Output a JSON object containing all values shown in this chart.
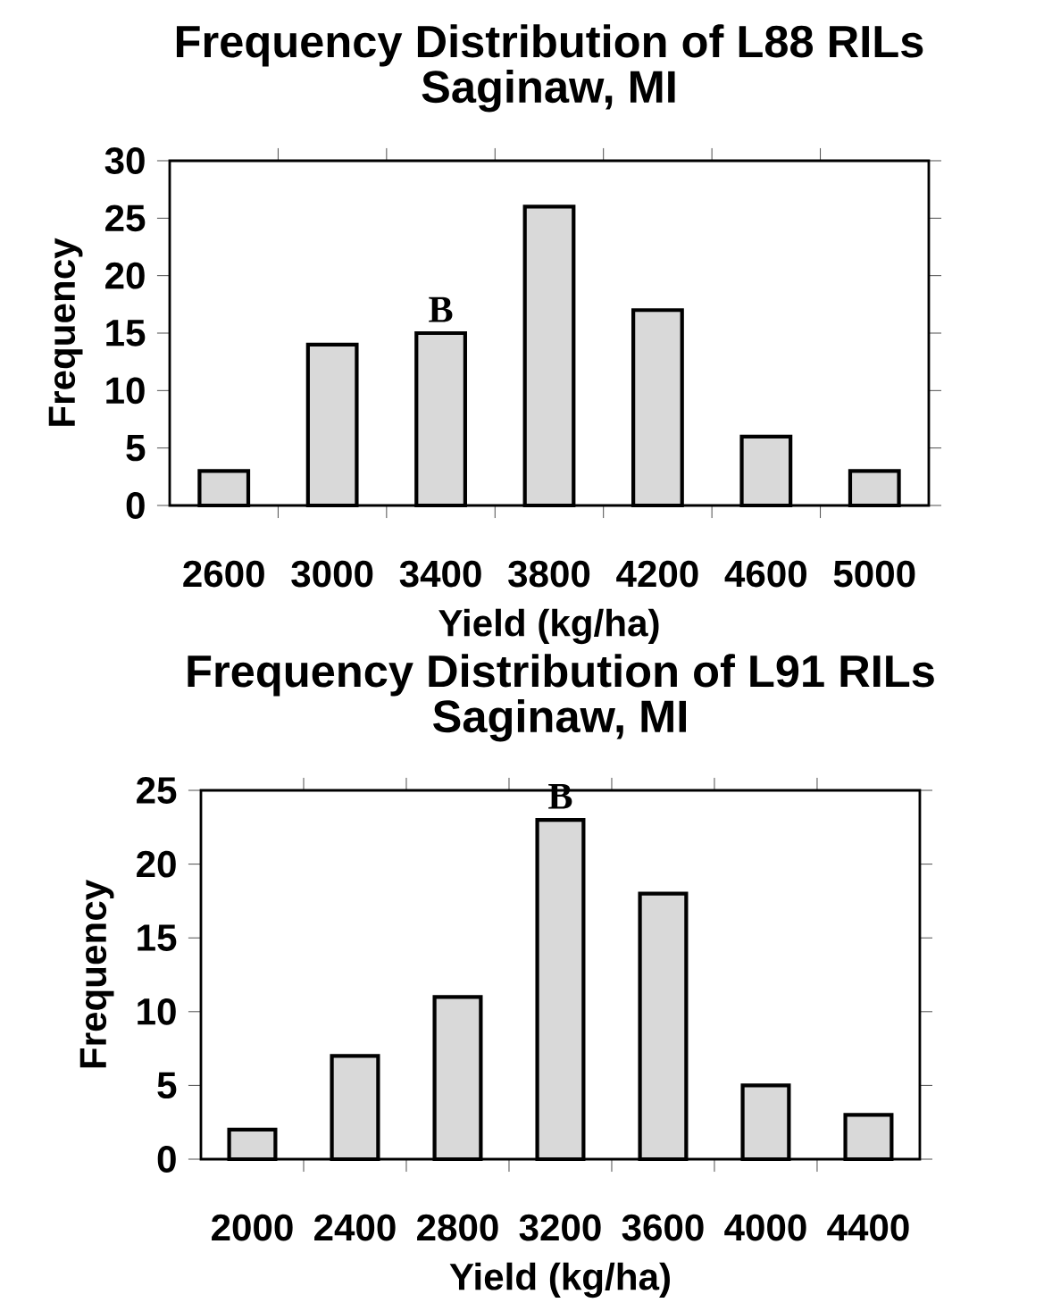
{
  "chart_data": [
    {
      "type": "bar",
      "title": "Frequency Distribution of L88 RILs",
      "subtitle": "Saginaw, MI",
      "xlabel": "Yield (kg/ha)",
      "ylabel": "Frequency",
      "categories": [
        "2600",
        "3000",
        "3400",
        "3800",
        "4200",
        "4600",
        "5000"
      ],
      "values": [
        3,
        14,
        15,
        26,
        17,
        6,
        3
      ],
      "color": "#d9d9d9",
      "ylim": [
        0,
        30
      ],
      "yticks": [
        0,
        5,
        10,
        15,
        20,
        25,
        30
      ],
      "annotations": [
        {
          "text": "B",
          "x": "3400",
          "y": 15
        }
      ]
    },
    {
      "type": "bar",
      "title": "Frequency Distribution of L91 RILs",
      "subtitle": "Saginaw, MI",
      "xlabel": "Yield (kg/ha)",
      "ylabel": "Frequency",
      "categories": [
        "2000",
        "2400",
        "2800",
        "3200",
        "3600",
        "4000",
        "4400"
      ],
      "values": [
        2,
        7,
        11,
        23,
        18,
        5,
        3
      ],
      "color": "#d9d9d9",
      "ylim": [
        0,
        25
      ],
      "yticks": [
        0,
        5,
        10,
        15,
        20,
        25
      ],
      "annotations": [
        {
          "text": "B",
          "x": "3200",
          "y": 23
        }
      ]
    }
  ]
}
